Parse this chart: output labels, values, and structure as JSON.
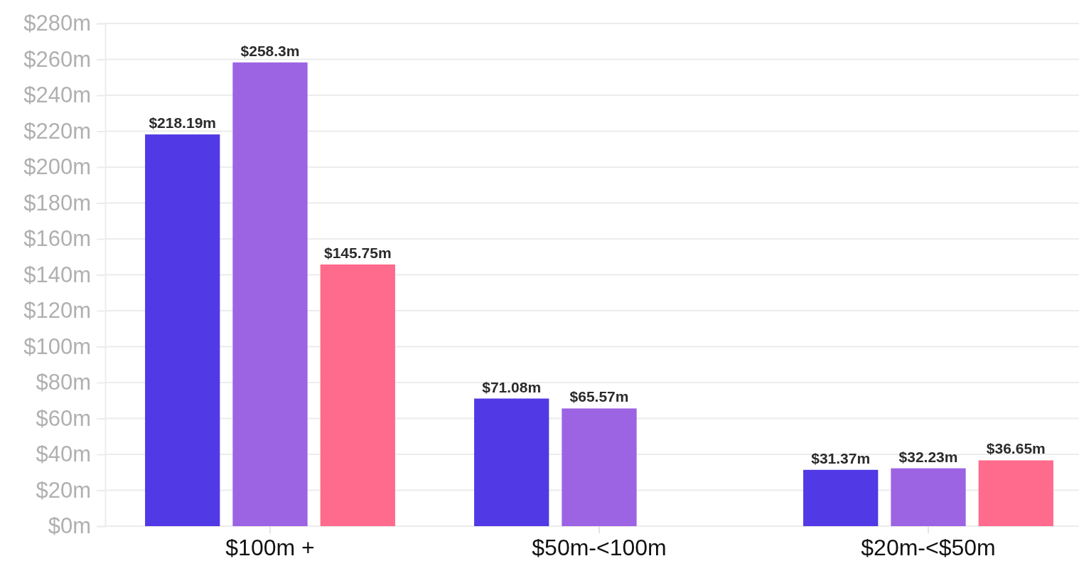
{
  "chart_data": {
    "type": "bar",
    "categories": [
      "$100m +",
      "$50m-<100m",
      "$20m-<$50m"
    ],
    "series": [
      {
        "color": "#5139e5",
        "values": [
          218.19,
          71.08,
          31.37
        ],
        "value_labels": [
          "$218.19m",
          "$71.08m",
          "$31.37m"
        ]
      },
      {
        "color": "#9c63e3",
        "values": [
          258.3,
          65.57,
          32.23
        ],
        "value_labels": [
          "$258.3m",
          "$65.57m",
          "$32.23m"
        ]
      },
      {
        "color": "#fe6b8c",
        "values": [
          145.75,
          null,
          36.65
        ],
        "value_labels": [
          "$145.75m",
          null,
          "$36.65m"
        ]
      }
    ],
    "ylim": [
      0,
      280
    ],
    "yticks": [
      {
        "value": 0,
        "label": "$0m"
      },
      {
        "value": 20,
        "label": "$20m"
      },
      {
        "value": 40,
        "label": "$40m"
      },
      {
        "value": 60,
        "label": "$60m"
      },
      {
        "value": 80,
        "label": "$80m"
      },
      {
        "value": 100,
        "label": "$100m"
      },
      {
        "value": 120,
        "label": "$120m"
      },
      {
        "value": 140,
        "label": "$140m"
      },
      {
        "value": 160,
        "label": "$160m"
      },
      {
        "value": 180,
        "label": "$180m"
      },
      {
        "value": 200,
        "label": "$200m"
      },
      {
        "value": 220,
        "label": "$220m"
      },
      {
        "value": 240,
        "label": "$240m"
      },
      {
        "value": 260,
        "label": "$260m"
      },
      {
        "value": 280,
        "label": "$280m"
      }
    ],
    "grid": "y"
  }
}
